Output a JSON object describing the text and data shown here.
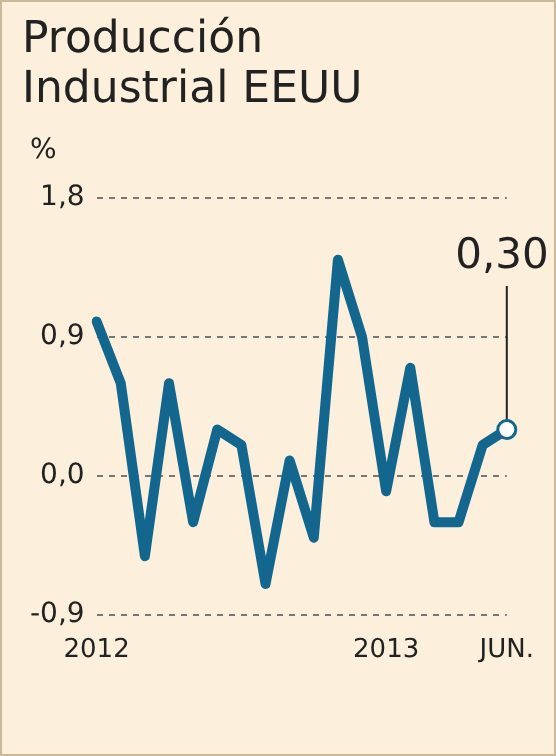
{
  "chart_data": {
    "type": "line",
    "title": "Producción Industrial EEUU",
    "ylabel": "%",
    "categories": [
      "2012",
      null,
      null,
      null,
      null,
      null,
      null,
      null,
      null,
      null,
      null,
      null,
      "2013",
      null,
      null,
      null,
      null,
      "JUN."
    ],
    "series": [
      {
        "color": "#13678f",
        "values": [
          1.0,
          0.6,
          -0.52,
          0.6,
          -0.3,
          0.3,
          0.2,
          -0.7,
          0.1,
          -0.4,
          1.4,
          0.9,
          -0.1,
          0.7,
          -0.3,
          -0.3,
          0.2,
          0.3
        ],
        "value_labels": [
          null,
          null,
          null,
          null,
          null,
          null,
          null,
          null,
          null,
          null,
          null,
          null,
          null,
          null,
          null,
          null,
          null,
          "0,30"
        ]
      }
    ],
    "ylim": [
      -0.9,
      1.8
    ],
    "yticks": [
      {
        "value": -0.9,
        "label": "-0,9"
      },
      {
        "value": 0,
        "label": "0,0"
      },
      {
        "value": 0.9,
        "label": "0,9"
      },
      {
        "value": 1.8,
        "label": "1,8"
      }
    ],
    "grid": "y",
    "line_style": "solid",
    "marker": "none"
  }
}
